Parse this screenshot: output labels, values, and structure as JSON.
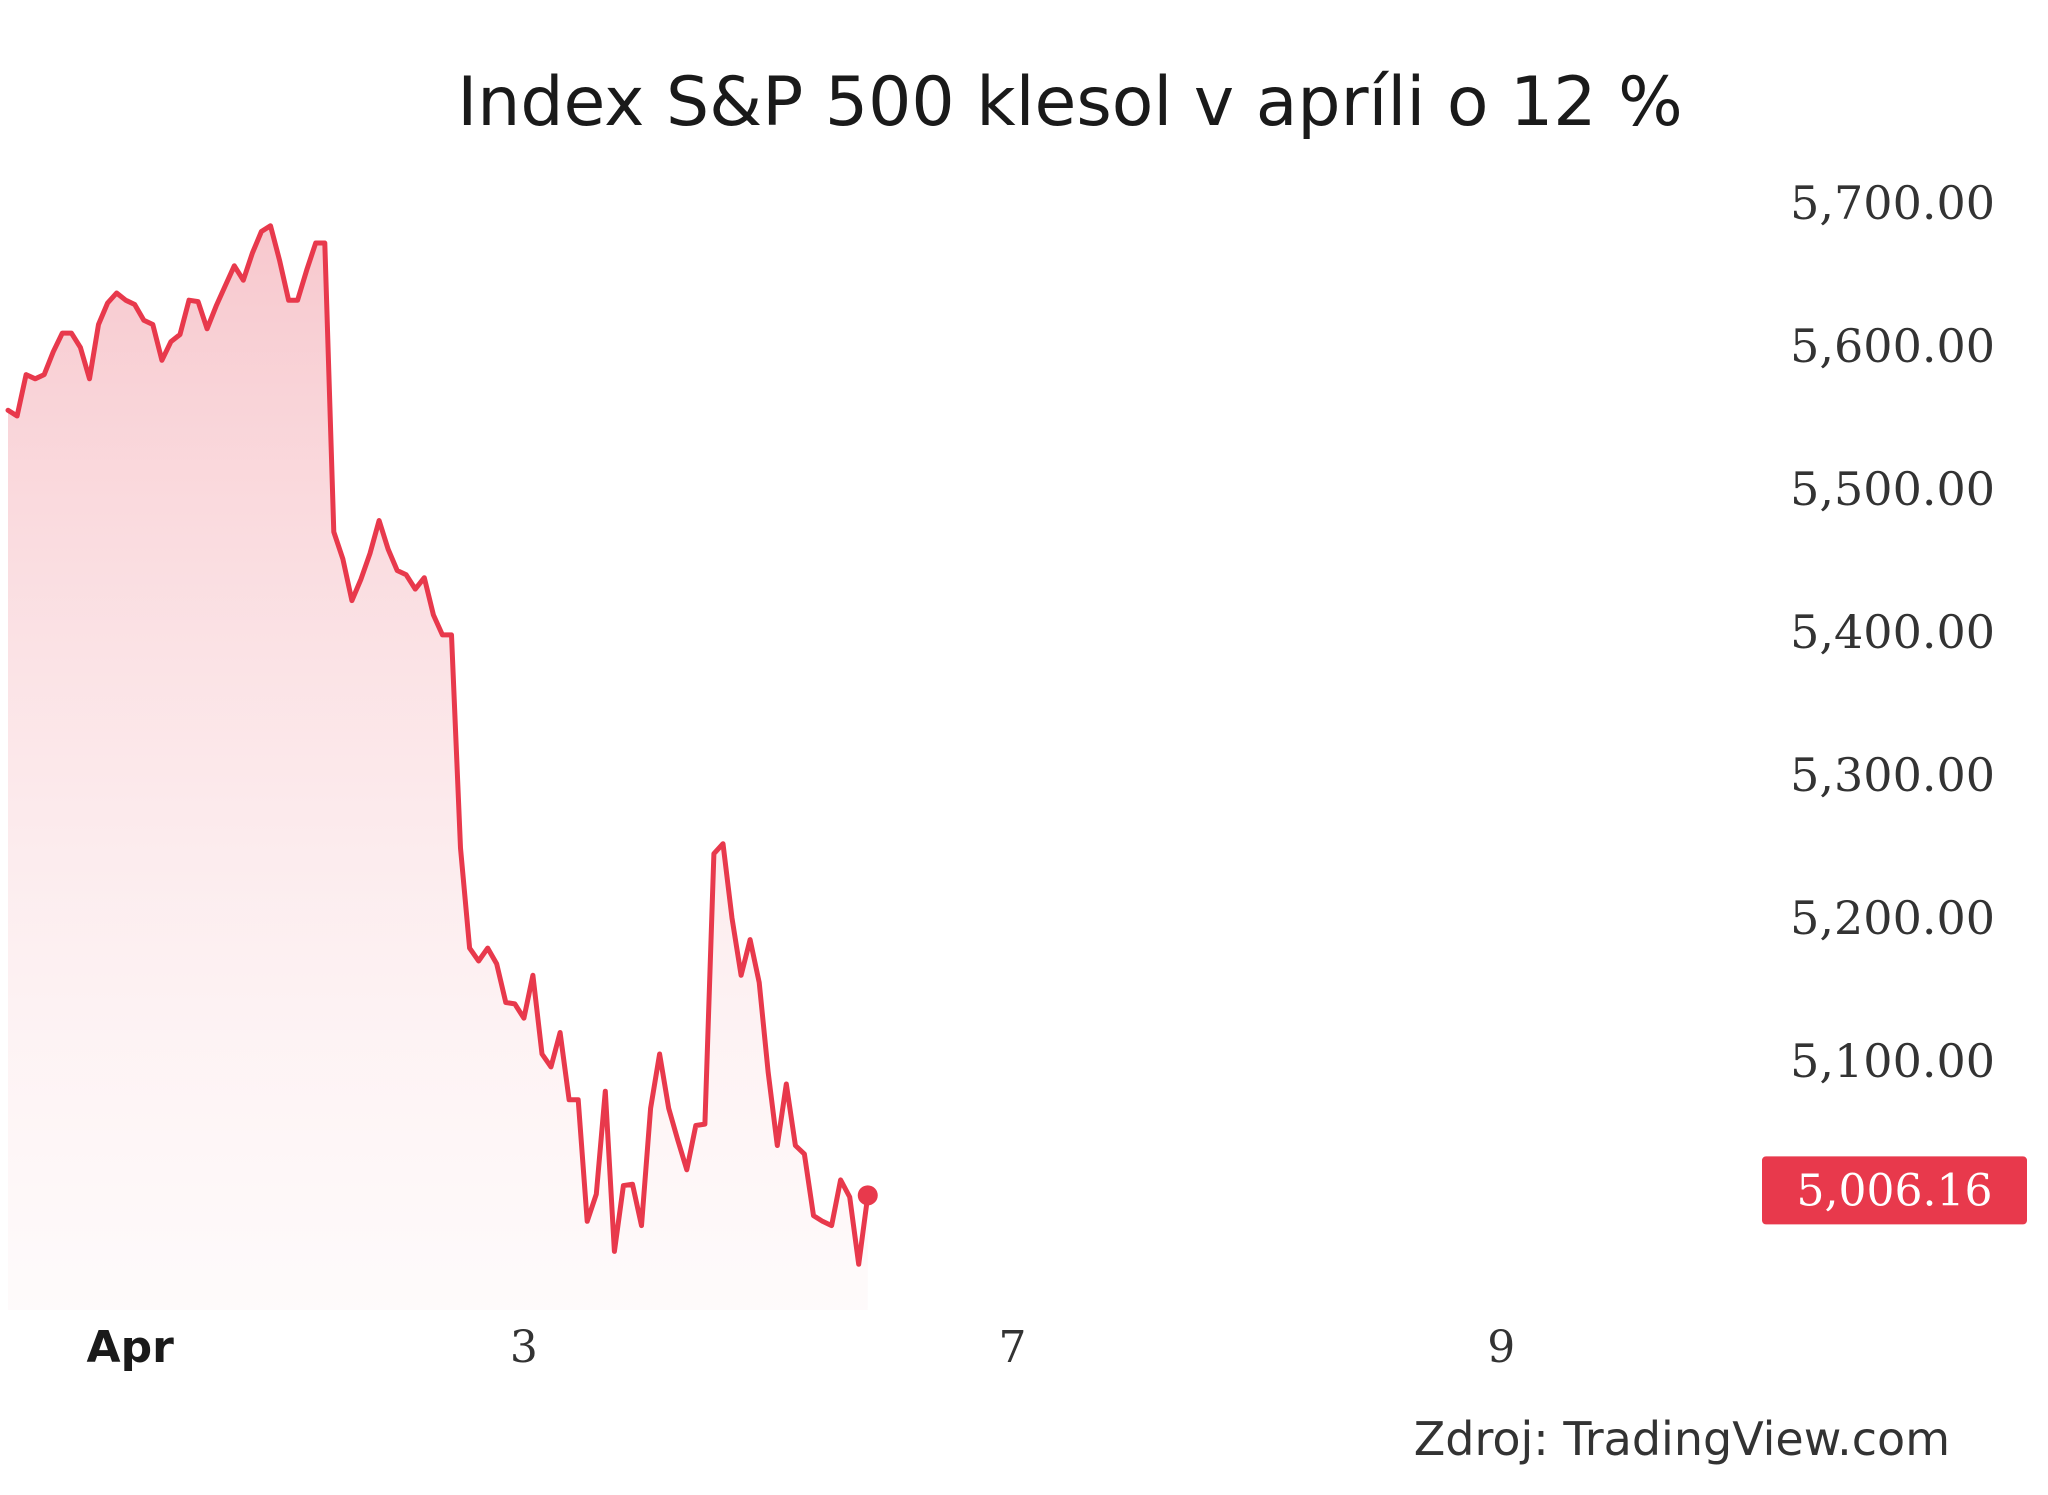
{
  "chart_data": {
    "type": "area",
    "title": "Index S&P 500 klesol v apríli o 12 %",
    "source": "Zdroj: TradingView.com",
    "xlabel": "",
    "ylabel": "",
    "ylim": [
      4940,
      5730
    ],
    "yticks": [
      5700,
      5600,
      5500,
      5400,
      5300,
      5200,
      5100
    ],
    "ytick_labels": [
      "5,700.00",
      "5,600.00",
      "5,500.00",
      "5,400.00",
      "5,300.00",
      "5,200.00",
      "5,100.00"
    ],
    "xticks": [
      {
        "label": "Apr",
        "index": 3,
        "bold": true
      },
      {
        "label": "3",
        "index": 57,
        "bold": false
      },
      {
        "label": "7",
        "index": 111,
        "bold": false
      },
      {
        "label": "9",
        "index": 165,
        "bold": false
      }
    ],
    "grid": false,
    "line_color": "#e8394c",
    "fill_color": "#f7c5cb",
    "last_value": 5006.16,
    "last_value_label": "5,006.16",
    "series": [
      {
        "values": [
          5555,
          5551,
          5580,
          5577,
          5580,
          5596,
          5609,
          5609,
          5599,
          5577,
          5615,
          5630,
          5637,
          5632,
          5629,
          5618,
          5615,
          5590,
          5603,
          5608,
          5632,
          5631,
          5612,
          5628,
          5642,
          5656,
          5646,
          5665,
          5680,
          5684,
          5660,
          5632,
          5632,
          5653,
          5672,
          5672,
          5470,
          5451,
          5422,
          5437,
          5455,
          5478,
          5458,
          5443,
          5440,
          5430,
          5438,
          5412,
          5398,
          5398,
          5249,
          5179,
          5170,
          5179,
          5168,
          5141,
          5140,
          5130,
          5160,
          5105,
          5096,
          5120,
          5073,
          5073,
          4988,
          5007,
          5079,
          4967,
          5013,
          5014,
          4985,
          5067,
          5105,
          5067,
          5045,
          5024,
          5055,
          5056,
          5245,
          5252,
          5200,
          5160,
          5185,
          5155,
          5092,
          5041,
          5084,
          5041,
          5035,
          4992,
          4988,
          4985,
          5017,
          5005,
          4958,
          5006
        ]
      }
    ]
  }
}
